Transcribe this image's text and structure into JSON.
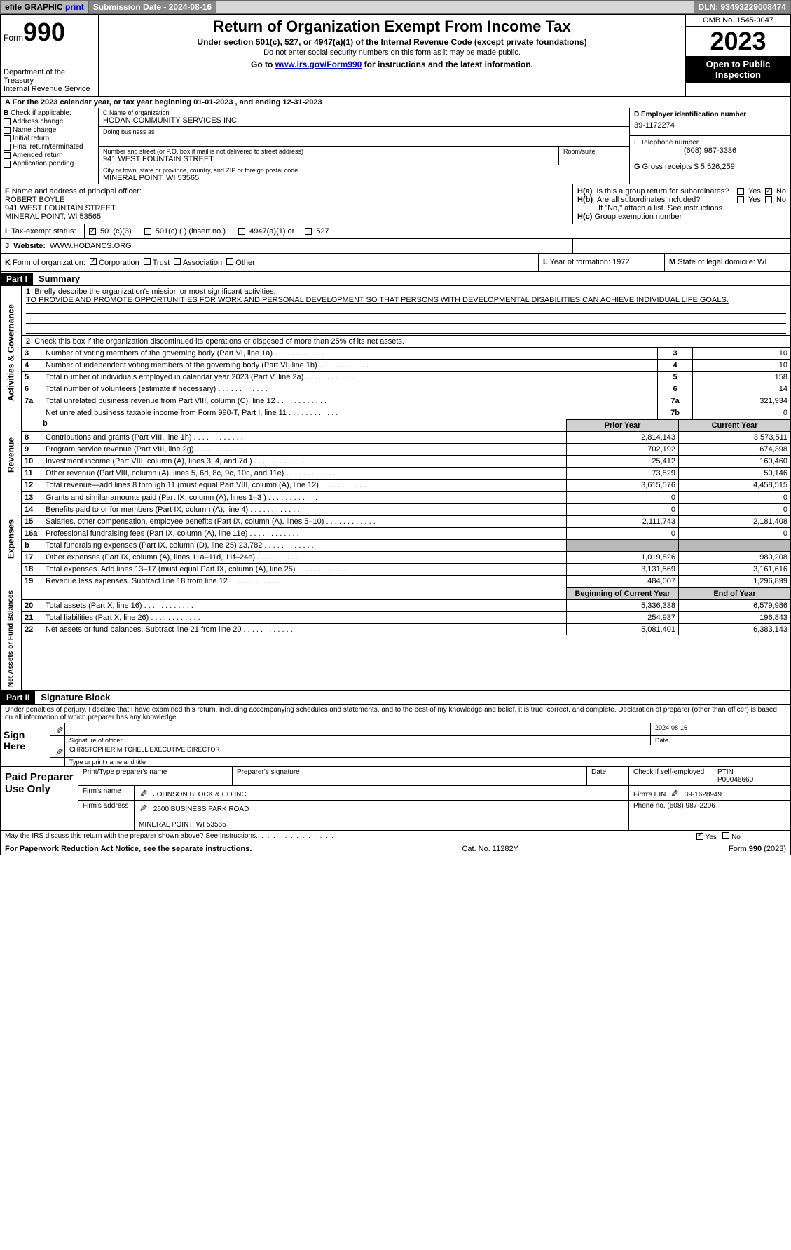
{
  "topbar": {
    "efile_label": "efile GRAPHIC",
    "print_link": "print",
    "submission_label": "Submission Date - 2024-08-16",
    "dln_label": "DLN: 93493229008474"
  },
  "header": {
    "form_word": "Form",
    "form_num": "990",
    "dept": "Department of the Treasury",
    "irs": "Internal Revenue Service",
    "title": "Return of Organization Exempt From Income Tax",
    "sub1": "Under section 501(c), 527, or 4947(a)(1) of the Internal Revenue Code (except private foundations)",
    "sub2": "Do not enter social security numbers on this form as it may be made public.",
    "sub3_prefix": "Go to ",
    "sub3_link": "www.irs.gov/Form990",
    "sub3_suffix": " for instructions and the latest information.",
    "omb": "OMB No. 1545-0047",
    "year": "2023",
    "open_public": "Open to Public Inspection"
  },
  "line_a": {
    "prefix": "A",
    "text": "For the 2023 calendar year, or tax year beginning 01-01-2023   , and ending 12-31-2023"
  },
  "box_b": {
    "label": "B",
    "check_label": "Check if applicable:",
    "addr_change": "Address change",
    "name_change": "Name change",
    "initial_return": "Initial return",
    "final_return": "Final return/terminated",
    "amended": "Amended return",
    "app_pending": "Application pending"
  },
  "box_c": {
    "name_label": "C Name of organization",
    "name": "HODAN COMMUNITY SERVICES INC",
    "dba_label": "Doing business as",
    "street_label": "Number and street (or P.O. box if mail is not delivered to street address)",
    "street": "941 WEST FOUNTAIN STREET",
    "suite_label": "Room/suite",
    "city_label": "City or town, state or province, country, and ZIP or foreign postal code",
    "city": "MINERAL POINT, WI  53565"
  },
  "box_d": {
    "label": "D Employer identification number",
    "ein": "39-1172274"
  },
  "box_e": {
    "label": "E Telephone number",
    "phone": "(608) 987-3336"
  },
  "box_g": {
    "label": "G",
    "text": "Gross receipts $ 5,526,259"
  },
  "box_f": {
    "label": "F",
    "text": "Name and address of principal officer:",
    "name": "ROBERT BOYLE",
    "street": "941 WEST FOUNTAIN STREET",
    "city": "MINERAL POINT, WI  53565"
  },
  "box_h": {
    "ha_label": "H(a)",
    "ha_text": "Is this a group return for subordinates?",
    "hb_label": "H(b)",
    "hb_text": "Are all subordinates included?",
    "note": "If \"No,\" attach a list. See instructions.",
    "hc_label": "H(c)",
    "hc_text": "Group exemption number",
    "yes": "Yes",
    "no": "No"
  },
  "tax_status": {
    "i_label": "I",
    "label": "Tax-exempt status:",
    "opt1": "501(c)(3)",
    "opt2": "501(c) (  ) (insert no.)",
    "opt3": "4947(a)(1) or",
    "opt4": "527"
  },
  "website": {
    "j_label": "J",
    "label": "Website:",
    "url": "WWW.HODANCS.ORG"
  },
  "box_k": {
    "label": "K",
    "text": "Form of organization:",
    "corp": "Corporation",
    "trust": "Trust",
    "assoc": "Association",
    "other": "Other"
  },
  "box_l": {
    "label": "L",
    "text": "Year of formation: 1972"
  },
  "box_m": {
    "label": "M",
    "text": "State of legal domicile: WI"
  },
  "part1": {
    "hdr": "Part I",
    "title": "Summary",
    "side_gov": "Activities & Governance",
    "side_rev": "Revenue",
    "side_exp": "Expenses",
    "side_net": "Net Assets or Fund Balances",
    "line1_label": "1",
    "line1_text": "Briefly describe the organization's mission or most significant activities:",
    "line1_mission": "TO PROVIDE AND PROMOTE OPPORTUNITIES FOR WORK AND PERSONAL DEVELOPMENT SO THAT PERSONS WITH DEVELOPMENTAL DISABILITIES CAN ACHIEVE INDIVIDUAL LIFE GOALS.",
    "line2_label": "2",
    "line2_text": "Check this box     if the organization discontinued its operations or disposed of more than 25% of its net assets.",
    "rows": [
      {
        "n": "3",
        "desc": "Number of voting members of the governing body (Part VI, line 1a)",
        "ln": "3",
        "v": "10"
      },
      {
        "n": "4",
        "desc": "Number of independent voting members of the governing body (Part VI, line 1b)",
        "ln": "4",
        "v": "10"
      },
      {
        "n": "5",
        "desc": "Total number of individuals employed in calendar year 2023 (Part V, line 2a)",
        "ln": "5",
        "v": "158"
      },
      {
        "n": "6",
        "desc": "Total number of volunteers (estimate if necessary)",
        "ln": "6",
        "v": "14"
      },
      {
        "n": "7a",
        "desc": "Total unrelated business revenue from Part VIII, column (C), line 12",
        "ln": "7a",
        "v": "321,934"
      },
      {
        "n": "",
        "desc": "Net unrelated business taxable income from Form 990-T, Part I, line 11",
        "ln": "7b",
        "v": "0"
      }
    ],
    "prior_hdr": "Prior Year",
    "curr_hdr": "Current Year",
    "rev_rows": [
      {
        "n": "8",
        "desc": "Contributions and grants (Part VIII, line 1h)",
        "py": "2,814,143",
        "cy": "3,573,511"
      },
      {
        "n": "9",
        "desc": "Program service revenue (Part VIII, line 2g)",
        "py": "702,192",
        "cy": "674,398"
      },
      {
        "n": "10",
        "desc": "Investment income (Part VIII, column (A), lines 3, 4, and 7d )",
        "py": "25,412",
        "cy": "160,460"
      },
      {
        "n": "11",
        "desc": "Other revenue (Part VIII, column (A), lines 5, 6d, 8c, 9c, 10c, and 11e)",
        "py": "73,829",
        "cy": "50,146"
      },
      {
        "n": "12",
        "desc": "Total revenue—add lines 8 through 11 (must equal Part VIII, column (A), line 12)",
        "py": "3,615,576",
        "cy": "4,458,515"
      }
    ],
    "exp_rows": [
      {
        "n": "13",
        "desc": "Grants and similar amounts paid (Part IX, column (A), lines 1–3 )",
        "py": "0",
        "cy": "0"
      },
      {
        "n": "14",
        "desc": "Benefits paid to or for members (Part IX, column (A), line 4)",
        "py": "0",
        "cy": "0"
      },
      {
        "n": "15",
        "desc": "Salaries, other compensation, employee benefits (Part IX, column (A), lines 5–10)",
        "py": "2,111,743",
        "cy": "2,181,408"
      },
      {
        "n": "16a",
        "desc": "Professional fundraising fees (Part IX, column (A), line 11e)",
        "py": "0",
        "cy": "0"
      },
      {
        "n": "b",
        "desc": "Total fundraising expenses (Part IX, column (D), line 25) 23,782",
        "py": "GRAY",
        "cy": "GRAY"
      },
      {
        "n": "17",
        "desc": "Other expenses (Part IX, column (A), lines 11a–11d, 11f–24e)",
        "py": "1,019,826",
        "cy": "980,208"
      },
      {
        "n": "18",
        "desc": "Total expenses. Add lines 13–17 (must equal Part IX, column (A), line 25)",
        "py": "3,131,569",
        "cy": "3,161,616"
      },
      {
        "n": "19",
        "desc": "Revenue less expenses. Subtract line 18 from line 12",
        "py": "484,007",
        "cy": "1,296,899"
      }
    ],
    "boy_hdr": "Beginning of Current Year",
    "eoy_hdr": "End of Year",
    "net_rows": [
      {
        "n": "20",
        "desc": "Total assets (Part X, line 16)",
        "py": "5,336,338",
        "cy": "6,579,986"
      },
      {
        "n": "21",
        "desc": "Total liabilities (Part X, line 26)",
        "py": "254,937",
        "cy": "196,843"
      },
      {
        "n": "22",
        "desc": "Net assets or fund balances. Subtract line 21 from line 20",
        "py": "5,081,401",
        "cy": "6,383,143"
      }
    ]
  },
  "part2": {
    "hdr": "Part II",
    "title": "Signature Block",
    "intro": "Under penalties of perjury, I declare that I have examined this return, including accompanying schedules and statements, and to the best of my knowledge and belief, it is true, correct, and complete. Declaration of preparer (other than officer) is based on all information of which preparer has any knowledge.",
    "sign_here": "Sign Here",
    "sig_officer": "Signature of officer",
    "sig_date": "2024-08-16",
    "date_label": "Date",
    "officer_name": "CHRISTOPHER MITCHELL  EXECUTIVE DIRECTOR",
    "type_label": "Type or print name and title",
    "paid_label": "Paid Preparer Use Only",
    "prep_name_label": "Print/Type preparer's name",
    "prep_sig_label": "Preparer's signature",
    "check_se": "Check      if self-employed",
    "ptin_label": "PTIN",
    "ptin": "P00046660",
    "firm_name_label": "Firm's name",
    "firm_name": "JOHNSON BLOCK & CO INC",
    "firm_ein_label": "Firm's EIN",
    "firm_ein": "39-1628949",
    "firm_addr_label": "Firm's address",
    "firm_addr": "2500 BUSINESS PARK ROAD",
    "firm_city": "MINERAL POINT, WI  53565",
    "phone_label": "Phone no.",
    "phone": "(608) 987-2206",
    "discuss": "May the IRS discuss this return with the preparer shown above? See Instructions.",
    "yes": "Yes",
    "no": "No"
  },
  "footer": {
    "pra": "For Paperwork Reduction Act Notice, see the separate instructions.",
    "cat": "Cat. No. 11282Y",
    "form": "Form 990 (2023)"
  }
}
